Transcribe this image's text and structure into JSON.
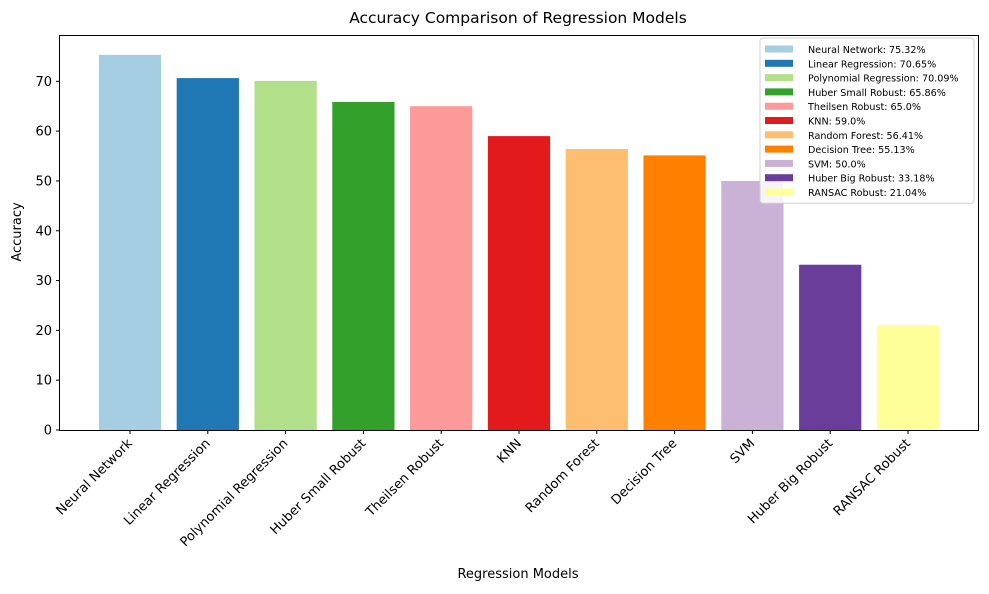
{
  "chart_data": {
    "type": "bar",
    "title": "Accuracy Comparison of Regression Models",
    "xlabel": "Regression Models",
    "ylabel": "Accuracy",
    "ylim": [
      0,
      79.1
    ],
    "yticks": [
      0,
      10,
      20,
      30,
      40,
      50,
      60,
      70
    ],
    "grid": false,
    "legend_position": "top-right",
    "categories": [
      "Neural Network",
      "Linear Regression",
      "Polynomial Regression",
      "Huber Small Robust",
      "Theilsen Robust",
      "KNN",
      "Random Forest",
      "Decision Tree",
      "SVM",
      "Huber Big Robust",
      "RANSAC Robust"
    ],
    "values": [
      75.32,
      70.65,
      70.09,
      65.86,
      65.0,
      59.0,
      56.41,
      55.13,
      50.0,
      33.18,
      21.04
    ],
    "colors": [
      "#a6cee3",
      "#1f78b4",
      "#b2df8a",
      "#33a02c",
      "#fb9a99",
      "#e31a1c",
      "#fdbf6f",
      "#ff7f00",
      "#cab2d6",
      "#6a3d9a",
      "#ffff99"
    ],
    "legend": [
      "Neural Network: 75.32%",
      "Linear Regression: 70.65%",
      "Polynomial Regression: 70.09%",
      "Huber Small Robust: 65.86%",
      "Theilsen Robust: 65.0%",
      "KNN: 59.0%",
      "Random Forest: 56.41%",
      "Decision Tree: 55.13%",
      "SVM: 50.0%",
      "Huber Big Robust: 33.18%",
      "RANSAC Robust: 21.04%"
    ]
  }
}
